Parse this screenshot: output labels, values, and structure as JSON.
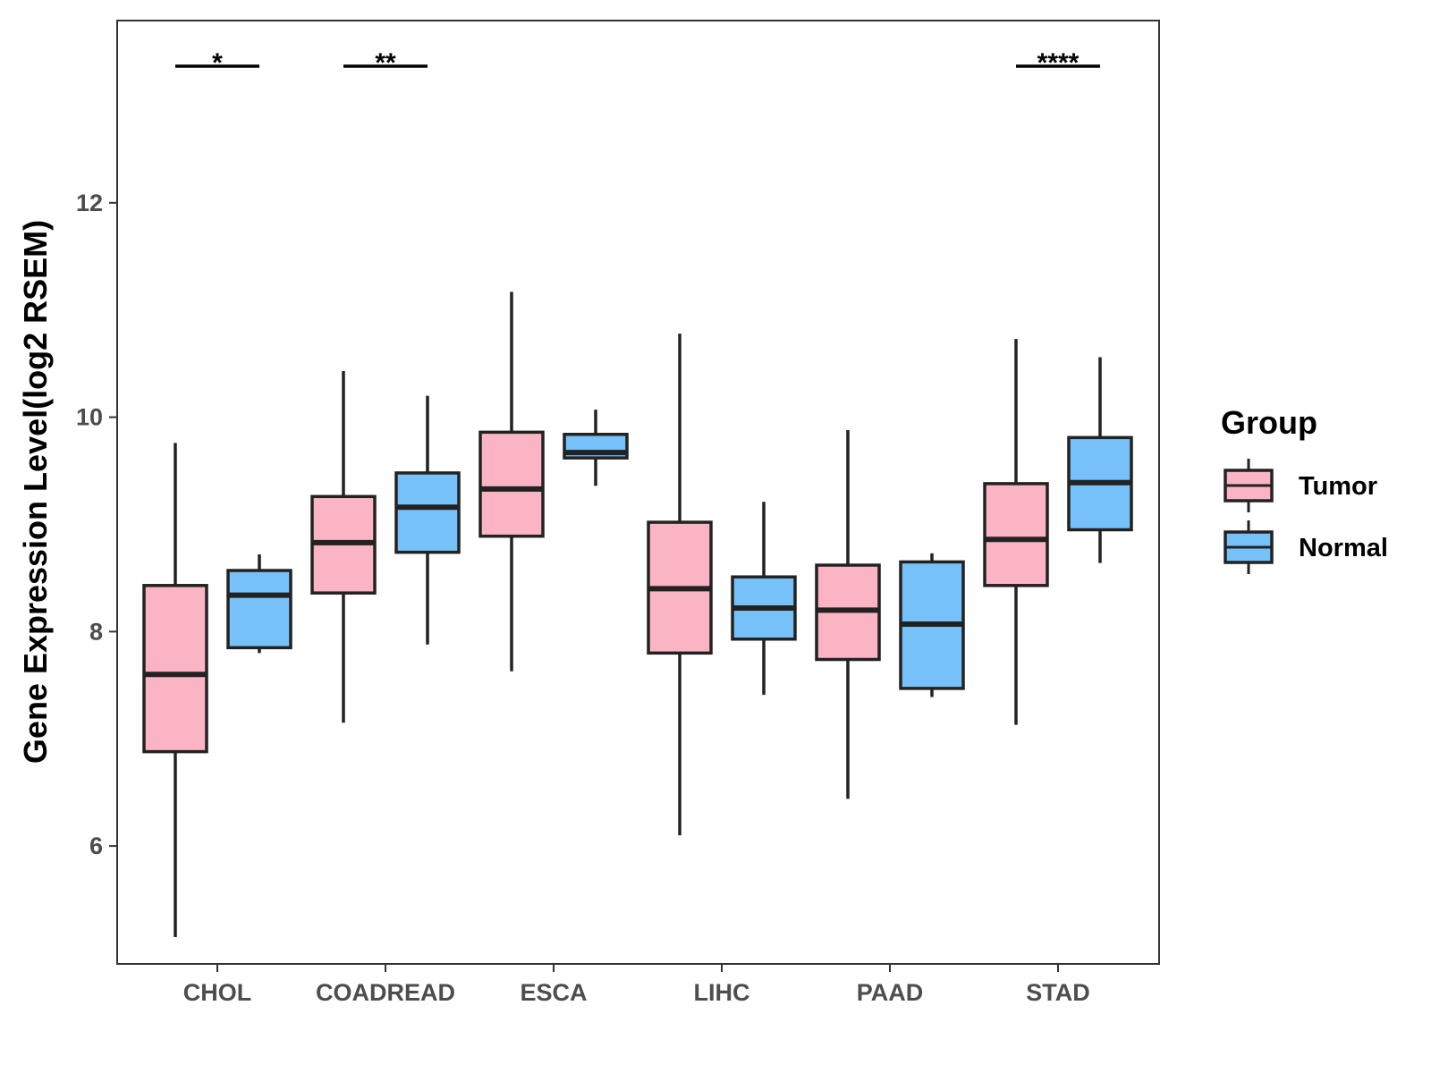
{
  "chart_data": {
    "type": "boxplot",
    "title": "",
    "xlabel": "",
    "ylabel": "Gene Expression Level(log2 RSEM)",
    "ylim": [
      4.9,
      13.7
    ],
    "yticks": [
      6,
      8,
      10,
      12
    ],
    "categories": [
      "CHOL",
      "COADREAD",
      "ESCA",
      "LIHC",
      "PAAD",
      "STAD"
    ],
    "legend": {
      "title": "Group",
      "position": "right",
      "entries": [
        "Tumor",
        "Normal"
      ]
    },
    "series": [
      {
        "name": "Tumor",
        "color": "#FBB4C4",
        "boxes": [
          {
            "min": 5.15,
            "q1": 6.88,
            "median": 7.6,
            "q3": 8.43,
            "max": 9.76
          },
          {
            "min": 7.15,
            "q1": 8.36,
            "median": 8.83,
            "q3": 9.26,
            "max": 10.43
          },
          {
            "min": 7.63,
            "q1": 8.89,
            "median": 9.33,
            "q3": 9.86,
            "max": 11.17
          },
          {
            "min": 6.1,
            "q1": 7.8,
            "median": 8.4,
            "q3": 9.02,
            "max": 10.78
          },
          {
            "min": 6.44,
            "q1": 7.74,
            "median": 8.2,
            "q3": 8.62,
            "max": 9.88
          },
          {
            "min": 7.13,
            "q1": 8.43,
            "median": 8.86,
            "q3": 9.38,
            "max": 10.73
          }
        ]
      },
      {
        "name": "Normal",
        "color": "#76C2F8",
        "boxes": [
          {
            "min": 7.8,
            "q1": 7.85,
            "median": 8.34,
            "q3": 8.57,
            "max": 8.72
          },
          {
            "min": 7.88,
            "q1": 8.74,
            "median": 9.16,
            "q3": 9.48,
            "max": 10.2
          },
          {
            "min": 9.36,
            "q1": 9.62,
            "median": 9.67,
            "q3": 9.84,
            "max": 10.07
          },
          {
            "min": 7.41,
            "q1": 7.93,
            "median": 8.22,
            "q3": 8.51,
            "max": 9.21
          },
          {
            "min": 7.39,
            "q1": 7.47,
            "median": 8.07,
            "q3": 8.65,
            "max": 8.73
          },
          {
            "min": 8.64,
            "q1": 8.95,
            "median": 9.39,
            "q3": 9.81,
            "max": 10.56
          }
        ]
      }
    ],
    "annotations": [
      {
        "category": "CHOL",
        "label": "*"
      },
      {
        "category": "COADREAD",
        "label": "**"
      },
      {
        "category": "STAD",
        "label": "****"
      }
    ]
  }
}
